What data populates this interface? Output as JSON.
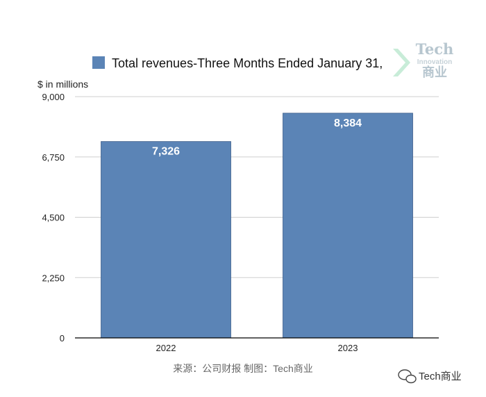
{
  "chart_data": {
    "type": "bar",
    "series": [
      {
        "name": "Total revenues-Three Months Ended January 31,",
        "values": [
          7326,
          8384
        ]
      }
    ],
    "categories": [
      "2022",
      "2023"
    ],
    "data_labels": [
      "7,326",
      "8,384"
    ],
    "ylabel": "$ in millions",
    "ylim": [
      0,
      9000
    ],
    "yticks": [
      0,
      2250,
      4500,
      6750,
      9000
    ],
    "ytick_labels": [
      "0",
      "2,250",
      "4,500",
      "6,750",
      "9,000"
    ],
    "grid": true,
    "legend_position": "top",
    "bar_color": "#5b84b6"
  },
  "source_note": "来源：公司财报 制图：Tech商业",
  "logo": {
    "line1": "Tech",
    "line2": "Innovation",
    "line3": "商业"
  },
  "watermark": {
    "text": "Tech商业"
  }
}
